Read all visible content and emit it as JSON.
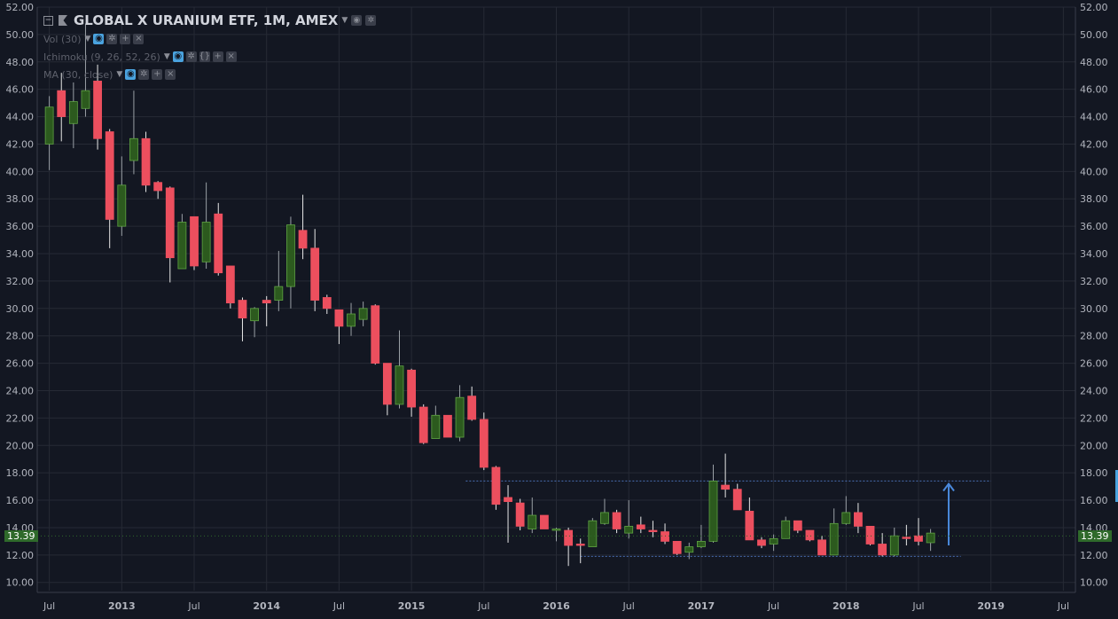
{
  "header": {
    "title": "GLOBAL X URANIUM ETF, 1M, AMEX",
    "collapse_icon": "minus-box-icon",
    "flag_icon": "flag-icon",
    "settings_icon": "gear-icon",
    "eye_icon": "eye-icon"
  },
  "indicators": [
    {
      "label": "Vol (30)"
    },
    {
      "label": "Ichimoku (9, 26, 52, 26)"
    },
    {
      "label": "MA (30, close)"
    }
  ],
  "price_label": "13.39",
  "colors": {
    "up": "#2c5a1e",
    "up_border": "#5fa343",
    "down": "#ec4f5e",
    "grid": "#262a35",
    "text": "#b2b5be",
    "arrow": "#4a89dc",
    "dotted": "#4a6fb5"
  },
  "chart_data": {
    "type": "candlestick",
    "title": "GLOBAL X URANIUM ETF, 1M, AMEX",
    "ylim": [
      9.4,
      52.0
    ],
    "y_ticks": [
      "10.00",
      "12.00",
      "14.00",
      "16.00",
      "18.00",
      "20.00",
      "22.00",
      "24.00",
      "26.00",
      "28.00",
      "30.00",
      "32.00",
      "34.00",
      "36.00",
      "38.00",
      "40.00",
      "42.00",
      "44.00",
      "46.00",
      "48.00",
      "50.00",
      "52.00"
    ],
    "x_ticks": [
      {
        "label": "Jul",
        "month": 0
      },
      {
        "label": "2013",
        "month": 6
      },
      {
        "label": "Jul",
        "month": 12
      },
      {
        "label": "2014",
        "month": 18
      },
      {
        "label": "Jul",
        "month": 24
      },
      {
        "label": "2015",
        "month": 30
      },
      {
        "label": "Jul",
        "month": 36
      },
      {
        "label": "2016",
        "month": 42
      },
      {
        "label": "Jul",
        "month": 48
      },
      {
        "label": "2017",
        "month": 54
      },
      {
        "label": "Jul",
        "month": 60
      },
      {
        "label": "2018",
        "month": 66
      },
      {
        "label": "Jul",
        "month": 72
      },
      {
        "label": "2019",
        "month": 78
      },
      {
        "label": "Jul",
        "month": 84
      }
    ],
    "x_range_months": [
      -1.0,
      85.0
    ],
    "first_month": "2012-07",
    "candles": [
      {
        "o": 42.0,
        "h": 45.5,
        "l": 40.1,
        "c": 44.7
      },
      {
        "o": 45.9,
        "h": 47.2,
        "l": 42.2,
        "c": 44.0
      },
      {
        "o": 43.5,
        "h": 46.5,
        "l": 41.7,
        "c": 45.1
      },
      {
        "o": 44.6,
        "h": 50.8,
        "l": 44.0,
        "c": 45.9
      },
      {
        "o": 46.6,
        "h": 47.8,
        "l": 41.6,
        "c": 42.4
      },
      {
        "o": 42.9,
        "h": 43.1,
        "l": 34.4,
        "c": 36.5
      },
      {
        "o": 36.0,
        "h": 41.1,
        "l": 35.3,
        "c": 39.0
      },
      {
        "o": 40.8,
        "h": 45.9,
        "l": 39.8,
        "c": 42.4
      },
      {
        "o": 42.4,
        "h": 42.9,
        "l": 38.5,
        "c": 39.0
      },
      {
        "o": 39.2,
        "h": 39.3,
        "l": 38.0,
        "c": 38.6
      },
      {
        "o": 38.8,
        "h": 38.9,
        "l": 31.9,
        "c": 33.7
      },
      {
        "o": 32.9,
        "h": 36.9,
        "l": 32.9,
        "c": 36.3
      },
      {
        "o": 36.7,
        "h": 36.7,
        "l": 32.8,
        "c": 33.1
      },
      {
        "o": 33.4,
        "h": 39.2,
        "l": 32.9,
        "c": 36.3
      },
      {
        "o": 36.9,
        "h": 37.7,
        "l": 32.4,
        "c": 32.6
      },
      {
        "o": 33.1,
        "h": 33.1,
        "l": 30.0,
        "c": 30.4
      },
      {
        "o": 30.6,
        "h": 30.8,
        "l": 27.6,
        "c": 29.3
      },
      {
        "o": 29.1,
        "h": 30.1,
        "l": 27.9,
        "c": 30.0
      },
      {
        "o": 30.6,
        "h": 30.9,
        "l": 28.7,
        "c": 30.4
      },
      {
        "o": 30.6,
        "h": 34.2,
        "l": 29.8,
        "c": 31.6
      },
      {
        "o": 31.6,
        "h": 36.7,
        "l": 30.0,
        "c": 36.1
      },
      {
        "o": 35.7,
        "h": 38.3,
        "l": 33.6,
        "c": 34.4
      },
      {
        "o": 34.4,
        "h": 35.8,
        "l": 29.8,
        "c": 30.6
      },
      {
        "o": 30.8,
        "h": 31.0,
        "l": 29.6,
        "c": 30.0
      },
      {
        "o": 29.9,
        "h": 29.9,
        "l": 27.4,
        "c": 28.7
      },
      {
        "o": 28.7,
        "h": 30.4,
        "l": 28.0,
        "c": 29.6
      },
      {
        "o": 29.2,
        "h": 30.5,
        "l": 28.7,
        "c": 30.0
      },
      {
        "o": 30.2,
        "h": 30.3,
        "l": 25.9,
        "c": 26.0
      },
      {
        "o": 26.0,
        "h": 26.0,
        "l": 22.2,
        "c": 23.0
      },
      {
        "o": 23.0,
        "h": 28.4,
        "l": 22.7,
        "c": 25.8
      },
      {
        "o": 25.5,
        "h": 25.6,
        "l": 22.1,
        "c": 22.8
      },
      {
        "o": 22.8,
        "h": 23.0,
        "l": 20.1,
        "c": 20.2
      },
      {
        "o": 20.5,
        "h": 22.9,
        "l": 20.5,
        "c": 22.2
      },
      {
        "o": 22.2,
        "h": 22.2,
        "l": 20.8,
        "c": 20.6
      },
      {
        "o": 20.6,
        "h": 24.4,
        "l": 20.3,
        "c": 23.5
      },
      {
        "o": 23.6,
        "h": 24.3,
        "l": 21.8,
        "c": 21.9
      },
      {
        "o": 21.9,
        "h": 22.4,
        "l": 18.2,
        "c": 18.4
      },
      {
        "o": 18.4,
        "h": 18.5,
        "l": 15.3,
        "c": 15.7
      },
      {
        "o": 16.2,
        "h": 17.1,
        "l": 12.9,
        "c": 15.9
      },
      {
        "o": 15.8,
        "h": 16.1,
        "l": 13.8,
        "c": 14.1
      },
      {
        "o": 13.9,
        "h": 16.2,
        "l": 13.6,
        "c": 14.9
      },
      {
        "o": 14.9,
        "h": 14.9,
        "l": 13.9,
        "c": 13.9
      },
      {
        "o": 13.8,
        "h": 14.0,
        "l": 13.0,
        "c": 13.9
      },
      {
        "o": 13.8,
        "h": 14.0,
        "l": 11.2,
        "c": 12.7
      },
      {
        "o": 12.8,
        "h": 13.2,
        "l": 11.4,
        "c": 12.7
      },
      {
        "o": 12.6,
        "h": 14.7,
        "l": 12.6,
        "c": 14.5
      },
      {
        "o": 14.3,
        "h": 16.1,
        "l": 14.2,
        "c": 15.1
      },
      {
        "o": 15.1,
        "h": 15.3,
        "l": 13.6,
        "c": 13.9
      },
      {
        "o": 13.6,
        "h": 16.0,
        "l": 13.2,
        "c": 14.1
      },
      {
        "o": 14.2,
        "h": 14.8,
        "l": 13.6,
        "c": 13.9
      },
      {
        "o": 13.8,
        "h": 14.5,
        "l": 13.3,
        "c": 13.7
      },
      {
        "o": 13.7,
        "h": 14.3,
        "l": 12.8,
        "c": 13.0
      },
      {
        "o": 13.0,
        "h": 13.0,
        "l": 12.0,
        "c": 12.1
      },
      {
        "o": 12.2,
        "h": 12.9,
        "l": 11.7,
        "c": 12.6
      },
      {
        "o": 12.6,
        "h": 14.2,
        "l": 12.5,
        "c": 13.0
      },
      {
        "o": 13.0,
        "h": 18.6,
        "l": 12.9,
        "c": 17.4
      },
      {
        "o": 17.1,
        "h": 19.4,
        "l": 16.2,
        "c": 16.8
      },
      {
        "o": 16.8,
        "h": 17.2,
        "l": 15.3,
        "c": 15.3
      },
      {
        "o": 15.2,
        "h": 16.2,
        "l": 13.2,
        "c": 13.1
      },
      {
        "o": 13.1,
        "h": 13.3,
        "l": 12.5,
        "c": 12.7
      },
      {
        "o": 12.8,
        "h": 13.5,
        "l": 12.3,
        "c": 13.2
      },
      {
        "o": 13.2,
        "h": 14.8,
        "l": 13.2,
        "c": 14.5
      },
      {
        "o": 14.5,
        "h": 14.5,
        "l": 13.6,
        "c": 13.8
      },
      {
        "o": 13.8,
        "h": 13.8,
        "l": 13.0,
        "c": 13.1
      },
      {
        "o": 13.1,
        "h": 13.4,
        "l": 12.0,
        "c": 12.0
      },
      {
        "o": 12.0,
        "h": 15.4,
        "l": 12.0,
        "c": 14.3
      },
      {
        "o": 14.3,
        "h": 16.3,
        "l": 14.2,
        "c": 15.1
      },
      {
        "o": 15.1,
        "h": 15.8,
        "l": 13.6,
        "c": 14.1
      },
      {
        "o": 14.1,
        "h": 14.1,
        "l": 12.7,
        "c": 12.8
      },
      {
        "o": 12.8,
        "h": 13.6,
        "l": 11.9,
        "c": 12.0
      },
      {
        "o": 12.0,
        "h": 14.0,
        "l": 11.9,
        "c": 13.4
      },
      {
        "o": 13.3,
        "h": 14.2,
        "l": 12.7,
        "c": 13.2
      },
      {
        "o": 13.4,
        "h": 14.7,
        "l": 12.7,
        "c": 13.0
      },
      {
        "o": 12.9,
        "h": 13.9,
        "l": 12.3,
        "c": 13.6
      }
    ],
    "resistance_line": {
      "y": 17.4,
      "from_month": 34.5,
      "to_month": 78.0
    },
    "support_line": {
      "y": 11.9,
      "from_month": 44.0,
      "to_month": 75.5
    },
    "arrow": {
      "month": 74.5,
      "from_y": 12.7,
      "to_y": 17.2
    },
    "last_price": 13.39,
    "grid": true
  }
}
